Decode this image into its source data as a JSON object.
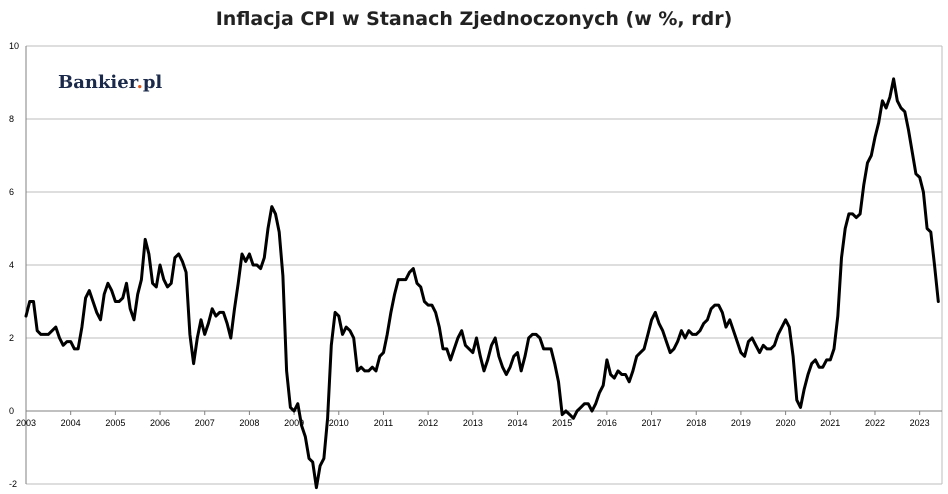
{
  "chart_data": {
    "type": "line",
    "title": "Inflacja CPI w Stanach Zjednoczonych (w %, rdr)",
    "xlabel": "",
    "ylabel": "",
    "ylim": [
      -2,
      10
    ],
    "yticks": [
      -2,
      0,
      2,
      4,
      6,
      8,
      10
    ],
    "xlim": [
      2003.0,
      2023.5
    ],
    "xticks": [
      "2003",
      "2004",
      "2005",
      "2006",
      "2007",
      "2008",
      "2009",
      "2010",
      "2011",
      "2012",
      "2013",
      "2014",
      "2015",
      "2016",
      "2017",
      "2018",
      "2019",
      "2020",
      "2021",
      "2022",
      "2023"
    ],
    "grid": "horizontal",
    "legend": "none",
    "line_color": "#000000",
    "series": [
      {
        "x": [
          2003.0,
          2003.083,
          2003.167,
          2003.25,
          2003.333,
          2003.417,
          2003.5,
          2003.583,
          2003.667,
          2003.75,
          2003.833,
          2003.917,
          2004.0,
          2004.083,
          2004.167,
          2004.25,
          2004.333,
          2004.417,
          2004.5,
          2004.583,
          2004.667,
          2004.75,
          2004.833,
          2004.917,
          2005.0,
          2005.083,
          2005.167,
          2005.25,
          2005.333,
          2005.417,
          2005.5,
          2005.583,
          2005.667,
          2005.75,
          2005.833,
          2005.917,
          2006.0,
          2006.083,
          2006.167,
          2006.25,
          2006.333,
          2006.417,
          2006.5,
          2006.583,
          2006.667,
          2006.75,
          2006.833,
          2006.917,
          2007.0,
          2007.083,
          2007.167,
          2007.25,
          2007.333,
          2007.417,
          2007.5,
          2007.583,
          2007.667,
          2007.75,
          2007.833,
          2007.917,
          2008.0,
          2008.083,
          2008.167,
          2008.25,
          2008.333,
          2008.417,
          2008.5,
          2008.583,
          2008.667,
          2008.75,
          2008.833,
          2008.917,
          2009.0,
          2009.083,
          2009.167,
          2009.25,
          2009.333,
          2009.417,
          2009.5,
          2009.583,
          2009.667,
          2009.75,
          2009.833,
          2009.917,
          2010.0,
          2010.083,
          2010.167,
          2010.25,
          2010.333,
          2010.417,
          2010.5,
          2010.583,
          2010.667,
          2010.75,
          2010.833,
          2010.917,
          2011.0,
          2011.083,
          2011.167,
          2011.25,
          2011.333,
          2011.417,
          2011.5,
          2011.583,
          2011.667,
          2011.75,
          2011.833,
          2011.917,
          2012.0,
          2012.083,
          2012.167,
          2012.25,
          2012.333,
          2012.417,
          2012.5,
          2012.583,
          2012.667,
          2012.75,
          2012.833,
          2012.917,
          2013.0,
          2013.083,
          2013.167,
          2013.25,
          2013.333,
          2013.417,
          2013.5,
          2013.583,
          2013.667,
          2013.75,
          2013.833,
          2013.917,
          2014.0,
          2014.083,
          2014.167,
          2014.25,
          2014.333,
          2014.417,
          2014.5,
          2014.583,
          2014.667,
          2014.75,
          2014.833,
          2014.917,
          2015.0,
          2015.083,
          2015.167,
          2015.25,
          2015.333,
          2015.417,
          2015.5,
          2015.583,
          2015.667,
          2015.75,
          2015.833,
          2015.917,
          2016.0,
          2016.083,
          2016.167,
          2016.25,
          2016.333,
          2016.417,
          2016.5,
          2016.583,
          2016.667,
          2016.75,
          2016.833,
          2016.917,
          2017.0,
          2017.083,
          2017.167,
          2017.25,
          2017.333,
          2017.417,
          2017.5,
          2017.583,
          2017.667,
          2017.75,
          2017.833,
          2017.917,
          2018.0,
          2018.083,
          2018.167,
          2018.25,
          2018.333,
          2018.417,
          2018.5,
          2018.583,
          2018.667,
          2018.75,
          2018.833,
          2018.917,
          2019.0,
          2019.083,
          2019.167,
          2019.25,
          2019.333,
          2019.417,
          2019.5,
          2019.583,
          2019.667,
          2019.75,
          2019.833,
          2019.917,
          2020.0,
          2020.083,
          2020.167,
          2020.25,
          2020.333,
          2020.417,
          2020.5,
          2020.583,
          2020.667,
          2020.75,
          2020.833,
          2020.917,
          2021.0,
          2021.083,
          2021.167,
          2021.25,
          2021.333,
          2021.417,
          2021.5,
          2021.583,
          2021.667,
          2021.75,
          2021.833,
          2021.917,
          2022.0,
          2022.083,
          2022.167,
          2022.25,
          2022.333,
          2022.417,
          2022.5,
          2022.583,
          2022.667,
          2022.75,
          2022.833,
          2022.917,
          2023.0,
          2023.083,
          2023.167,
          2023.25,
          2023.333,
          2023.417
        ],
        "y": [
          2.6,
          3.0,
          3.0,
          2.2,
          2.1,
          2.1,
          2.1,
          2.2,
          2.3,
          2.0,
          1.8,
          1.9,
          1.9,
          1.7,
          1.7,
          2.3,
          3.1,
          3.3,
          3.0,
          2.7,
          2.5,
          3.2,
          3.5,
          3.3,
          3.0,
          3.0,
          3.1,
          3.5,
          2.8,
          2.5,
          3.2,
          3.6,
          4.7,
          4.3,
          3.5,
          3.4,
          4.0,
          3.6,
          3.4,
          3.5,
          4.2,
          4.3,
          4.1,
          3.8,
          2.1,
          1.3,
          2.0,
          2.5,
          2.1,
          2.4,
          2.8,
          2.6,
          2.7,
          2.7,
          2.4,
          2.0,
          2.8,
          3.5,
          4.3,
          4.1,
          4.3,
          4.0,
          4.0,
          3.9,
          4.2,
          5.0,
          5.6,
          5.4,
          4.9,
          3.7,
          1.1,
          0.1,
          0.0,
          0.2,
          -0.4,
          -0.7,
          -1.3,
          -1.4,
          -2.1,
          -1.5,
          -1.3,
          -0.2,
          1.8,
          2.7,
          2.6,
          2.1,
          2.3,
          2.2,
          2.0,
          1.1,
          1.2,
          1.1,
          1.1,
          1.2,
          1.1,
          1.5,
          1.6,
          2.1,
          2.7,
          3.2,
          3.6,
          3.6,
          3.6,
          3.8,
          3.9,
          3.5,
          3.4,
          3.0,
          2.9,
          2.9,
          2.7,
          2.3,
          1.7,
          1.7,
          1.4,
          1.7,
          2.0,
          2.2,
          1.8,
          1.7,
          1.6,
          2.0,
          1.5,
          1.1,
          1.4,
          1.8,
          2.0,
          1.5,
          1.2,
          1.0,
          1.2,
          1.5,
          1.6,
          1.1,
          1.5,
          2.0,
          2.1,
          2.1,
          2.0,
          1.7,
          1.7,
          1.7,
          1.3,
          0.8,
          -0.1,
          0.0,
          -0.1,
          -0.2,
          0.0,
          0.1,
          0.2,
          0.2,
          0.0,
          0.2,
          0.5,
          0.7,
          1.4,
          1.0,
          0.9,
          1.1,
          1.0,
          1.0,
          0.8,
          1.1,
          1.5,
          1.6,
          1.7,
          2.1,
          2.5,
          2.7,
          2.4,
          2.2,
          1.9,
          1.6,
          1.7,
          1.9,
          2.2,
          2.0,
          2.2,
          2.1,
          2.1,
          2.2,
          2.4,
          2.5,
          2.8,
          2.9,
          2.9,
          2.7,
          2.3,
          2.5,
          2.2,
          1.9,
          1.6,
          1.5,
          1.9,
          2.0,
          1.8,
          1.6,
          1.8,
          1.7,
          1.7,
          1.8,
          2.1,
          2.3,
          2.5,
          2.3,
          1.5,
          0.3,
          0.1,
          0.6,
          1.0,
          1.3,
          1.4,
          1.2,
          1.2,
          1.4,
          1.4,
          1.7,
          2.6,
          4.2,
          5.0,
          5.4,
          5.4,
          5.3,
          5.4,
          6.2,
          6.8,
          7.0,
          7.5,
          7.9,
          8.5,
          8.3,
          8.6,
          9.1,
          8.5,
          8.3,
          8.2,
          7.7,
          7.1,
          6.5,
          6.4,
          6.0,
          5.0,
          4.9,
          4.0,
          3.0
        ]
      }
    ]
  },
  "brand": {
    "name": "Bankier",
    "dot": ".",
    "suffix": "pl"
  }
}
